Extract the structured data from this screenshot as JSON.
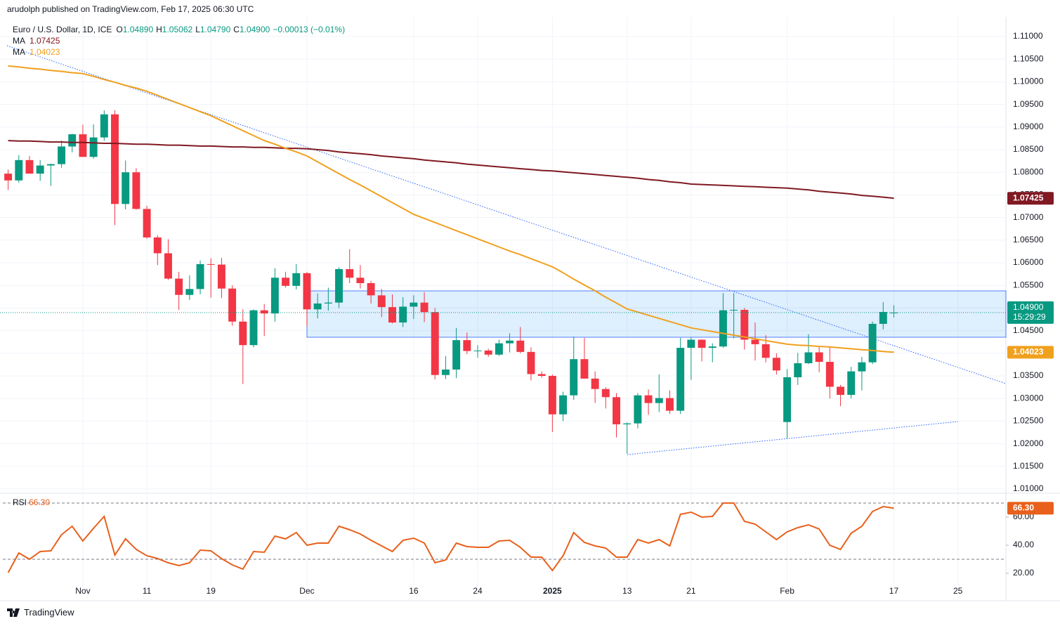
{
  "header": "arudolph published on TradingView.com, Feb 17, 2025 06:30 UTC",
  "footer": "TradingView",
  "chart_data": {
    "type": "candlestick",
    "title": "Euro / U.S. Dollar, 1D, ICE",
    "legend": {
      "fields": [
        {
          "key": "O",
          "value": "1.04890"
        },
        {
          "key": "H",
          "value": "1.05062"
        },
        {
          "key": "L",
          "value": "1.04790"
        },
        {
          "key": "C",
          "value": "1.04900"
        }
      ],
      "change": "−0.00013 (−0.01%)"
    },
    "countdown": "15:29:29",
    "up_color": "#089981",
    "down_color": "#f23645",
    "categories": [
      null,
      null,
      null,
      null,
      null,
      null,
      null,
      "Nov",
      null,
      null,
      null,
      null,
      null,
      "11",
      null,
      null,
      null,
      null,
      null,
      "19",
      null,
      null,
      null,
      null,
      null,
      null,
      null,
      null,
      "Dec",
      null,
      null,
      null,
      null,
      null,
      null,
      null,
      null,
      null,
      "16",
      null,
      null,
      null,
      null,
      null,
      "24",
      null,
      null,
      null,
      null,
      null,
      null,
      "2025",
      null,
      null,
      null,
      null,
      null,
      null,
      "13",
      null,
      null,
      null,
      null,
      null,
      "21",
      null,
      null,
      null,
      null,
      null,
      null,
      null,
      null,
      "Feb",
      null,
      null,
      null,
      null,
      null,
      null,
      null,
      null,
      null,
      "17",
      null,
      null,
      null,
      null,
      null,
      "25",
      null,
      null,
      null,
      null
    ],
    "open": [
      1.0797,
      1.0782,
      1.0827,
      1.0797,
      1.0815,
      1.0818,
      1.0857,
      1.0884,
      1.0834,
      1.0877,
      1.0928,
      1.073,
      1.08,
      1.0719,
      1.0656,
      1.0621,
      1.0565,
      1.0529,
      1.0542,
      1.0597,
      1.0596,
      1.0543,
      1.047,
      1.0418,
      1.0495,
      1.0488,
      1.0567,
      1.0549,
      1.0577,
      1.0497,
      1.051,
      1.0512,
      1.0586,
      1.0567,
      1.0555,
      1.0528,
      1.0502,
      1.0468,
      1.0503,
      1.0512,
      1.0491,
      1.0352,
      1.0364,
      1.0429,
      1.0405,
      1.0406,
      1.0397,
      1.0422,
      1.0428,
      1.0403,
      1.0354,
      1.035,
      1.0265,
      1.0307,
      1.0387,
      1.0344,
      1.0321,
      1.0303,
      1.0243,
      1.0245,
      1.0307,
      1.029,
      1.0301,
      1.0273,
      1.0412,
      1.043,
      1.0412,
      1.0415,
      1.0495,
      1.0496,
      1.043,
      1.042,
      1.039,
      1.0248,
      1.0347,
      1.0378,
      1.0402,
      1.0381,
      1.0326,
      1.0308,
      1.036,
      1.038,
      1.0465,
      1.0489,
      null,
      null,
      null,
      null,
      null,
      null,
      null,
      null,
      null,
      null
    ],
    "high": [
      1.0806,
      1.0838,
      1.0836,
      1.0827,
      1.0819,
      1.087,
      1.0885,
      1.0905,
      1.0906,
      1.0937,
      1.0937,
      1.0826,
      1.0809,
      1.0726,
      1.0661,
      1.0652,
      1.058,
      1.0572,
      1.0605,
      1.061,
      1.0611,
      1.055,
      1.0497,
      1.0497,
      1.0509,
      1.0588,
      1.058,
      1.0597,
      1.058,
      1.0532,
      1.0545,
      1.059,
      1.063,
      1.0595,
      1.056,
      1.0542,
      1.053,
      1.0524,
      1.0528,
      1.0535,
      1.05,
      1.0394,
      1.0456,
      1.0446,
      1.0418,
      1.041,
      1.043,
      1.0444,
      1.0458,
      1.0413,
      1.036,
      1.0353,
      1.0315,
      1.0437,
      1.0434,
      1.036,
      1.0325,
      1.0312,
      1.0247,
      1.0312,
      1.032,
      1.0353,
      1.0318,
      1.0434,
      1.0435,
      1.0431,
      1.0422,
      1.0533,
      1.0533,
      1.05,
      1.0468,
      1.044,
      1.04,
      1.0365,
      1.0401,
      1.0442,
      1.0415,
      1.0413,
      1.033,
      1.037,
      1.0392,
      1.047,
      1.0513,
      1.05062,
      null,
      null,
      null,
      null,
      null,
      null,
      null,
      null,
      null,
      null
    ],
    "low": [
      1.0761,
      1.0777,
      1.0799,
      1.0781,
      1.077,
      1.081,
      1.0844,
      1.0834,
      1.083,
      1.087,
      1.0683,
      1.0718,
      1.0717,
      1.0653,
      1.0595,
      1.0562,
      1.0496,
      1.0518,
      1.053,
      1.0523,
      1.0522,
      1.0461,
      1.0332,
      1.0413,
      1.0438,
      1.047,
      1.0545,
      1.0541,
      1.046,
      1.0477,
      1.0494,
      1.05,
      1.0555,
      1.0543,
      1.051,
      1.048,
      1.0466,
      1.0458,
      1.0476,
      1.0469,
      1.0342,
      1.0343,
      1.0345,
      1.0398,
      1.039,
      1.0392,
      1.0394,
      1.0402,
      1.04,
      1.034,
      1.0346,
      1.0226,
      1.025,
      1.0297,
      1.0344,
      1.029,
      1.0278,
      1.0214,
      1.0178,
      1.0234,
      1.0264,
      1.027,
      1.0266,
      1.0266,
      1.0341,
      1.0382,
      1.038,
      1.0412,
      1.0433,
      1.0408,
      1.0384,
      1.038,
      1.0353,
      1.0211,
      1.033,
      1.0376,
      1.0358,
      1.03,
      1.0283,
      1.03,
      1.0318,
      1.0376,
      1.0453,
      1.0479,
      null,
      null,
      null,
      null,
      null,
      null,
      null,
      null,
      null,
      null
    ],
    "close": [
      1.0782,
      1.0827,
      1.0797,
      1.0815,
      1.0818,
      1.0857,
      1.0884,
      1.0834,
      1.0877,
      1.0928,
      1.073,
      1.08,
      1.0719,
      1.0656,
      1.0621,
      1.0565,
      1.0529,
      1.0542,
      1.0597,
      1.0596,
      1.0543,
      1.047,
      1.0418,
      1.0495,
      1.0488,
      1.0567,
      1.0549,
      1.0577,
      1.0497,
      1.051,
      1.0512,
      1.0586,
      1.0567,
      1.0555,
      1.0528,
      1.0502,
      1.0468,
      1.0503,
      1.0512,
      1.0491,
      1.0352,
      1.0364,
      1.0429,
      1.0405,
      1.0406,
      1.0397,
      1.0422,
      1.0428,
      1.0403,
      1.0354,
      1.035,
      1.0265,
      1.0307,
      1.0387,
      1.0344,
      1.0321,
      1.0303,
      1.0243,
      1.0245,
      1.0307,
      1.029,
      1.0301,
      1.0273,
      1.0412,
      1.043,
      1.0412,
      1.0415,
      1.0495,
      1.0496,
      1.043,
      1.042,
      1.039,
      1.0362,
      1.0347,
      1.0378,
      1.0402,
      1.0381,
      1.0326,
      1.0308,
      1.036,
      1.038,
      1.0465,
      1.04913,
      1.049,
      null,
      null,
      null,
      null,
      null,
      null,
      null,
      null,
      null,
      null
    ],
    "overlays": [
      {
        "name": "MA",
        "color": "#801922",
        "values": [
          1.087,
          1.0869,
          1.0869,
          1.0868,
          1.0867,
          1.0867,
          1.0866,
          1.0866,
          1.0865,
          1.0864,
          1.0864,
          1.0863,
          1.0862,
          1.0862,
          1.0861,
          1.086,
          1.086,
          1.0859,
          1.0858,
          1.0858,
          1.0857,
          1.0856,
          1.0856,
          1.0855,
          1.0855,
          1.0854,
          1.0853,
          1.0853,
          1.0852,
          1.085,
          1.0848,
          1.0845,
          1.0843,
          1.0841,
          1.0839,
          1.0836,
          1.0834,
          1.0832,
          1.083,
          1.0827,
          1.0825,
          1.0823,
          1.0821,
          1.0818,
          1.0816,
          1.0814,
          1.0812,
          1.081,
          1.0808,
          1.0806,
          1.0804,
          1.0803,
          1.0801,
          1.0799,
          1.0797,
          1.0795,
          1.0793,
          1.0791,
          1.0789,
          1.0787,
          1.0784,
          1.0782,
          1.0779,
          1.0777,
          1.0774,
          1.0773,
          1.0772,
          1.0771,
          1.077,
          1.0769,
          1.0768,
          1.0767,
          1.0766,
          1.0765,
          1.0763,
          1.0761,
          1.0758,
          1.0756,
          1.0754,
          1.0752,
          1.0749,
          1.0747,
          1.0745,
          1.07425,
          null,
          null,
          null,
          null,
          null,
          null,
          null,
          null,
          null,
          null
        ]
      },
      {
        "name": "MA",
        "color": "#f0a01e",
        "values": [
          1.1035,
          1.1033,
          1.103,
          1.1028,
          1.1025,
          1.1023,
          1.102,
          1.1018,
          1.1012,
          1.1005,
          1.0999,
          1.0992,
          1.0986,
          1.0979,
          1.097,
          1.0961,
          1.0952,
          1.0943,
          1.0934,
          1.0925,
          1.0914,
          1.0903,
          1.0892,
          1.0881,
          1.087,
          1.0862,
          1.0853,
          1.0845,
          1.0836,
          1.0823,
          1.081,
          1.0797,
          1.0784,
          1.0772,
          1.0759,
          1.0746,
          1.0733,
          1.072,
          1.0707,
          1.0698,
          1.0689,
          1.068,
          1.0671,
          1.0662,
          1.0653,
          1.0644,
          1.0635,
          1.0626,
          1.0618,
          1.0609,
          1.06,
          1.0591,
          1.0578,
          1.0564,
          1.0551,
          1.0538,
          1.0524,
          1.0511,
          1.0498,
          1.0491,
          1.0484,
          1.0477,
          1.047,
          1.0463,
          1.0456,
          1.0452,
          1.0448,
          1.0444,
          1.044,
          1.0436,
          1.0432,
          1.0428,
          1.0424,
          1.042,
          1.0418,
          1.0417,
          1.0415,
          1.0414,
          1.0412,
          1.041,
          1.0408,
          1.0406,
          1.0404,
          1.04023,
          null,
          null,
          null,
          null,
          null,
          null,
          null,
          null,
          null,
          null
        ]
      }
    ],
    "ylim": [
      1.00938,
      1.11435
    ],
    "yticks": [
      {
        "value": 1.01,
        "label": "1.01000"
      },
      {
        "value": 1.015,
        "label": "1.01500"
      },
      {
        "value": 1.02,
        "label": "1.02000"
      },
      {
        "value": 1.025,
        "label": "1.02500"
      },
      {
        "value": 1.03,
        "label": "1.03000"
      },
      {
        "value": 1.035,
        "label": "1.03500"
      },
      {
        "value": 1.04,
        "label": "1.04000"
      },
      {
        "value": 1.045,
        "label": "1.04500"
      },
      {
        "value": 1.05,
        "label": "1.05000"
      },
      {
        "value": 1.055,
        "label": "1.05500"
      },
      {
        "value": 1.06,
        "label": "1.06000"
      },
      {
        "value": 1.065,
        "label": "1.06500"
      },
      {
        "value": 1.07,
        "label": "1.07000"
      },
      {
        "value": 1.075,
        "label": "1.07500"
      },
      {
        "value": 1.08,
        "label": "1.08000"
      },
      {
        "value": 1.085,
        "label": "1.08500"
      },
      {
        "value": 1.09,
        "label": "1.09000"
      },
      {
        "value": 1.095,
        "label": "1.09500"
      },
      {
        "value": 1.1,
        "label": "1.10000"
      },
      {
        "value": 1.105,
        "label": "1.10500"
      },
      {
        "value": 1.11,
        "label": "1.11000"
      }
    ],
    "grid": true,
    "rsi": {
      "name": "RSI",
      "color": "#e8601c",
      "last_label": "66.30",
      "values": [
        20.5,
        34.5,
        30,
        35.5,
        36,
        47.5,
        53.5,
        43,
        52,
        60.5,
        33,
        44.5,
        37,
        32.5,
        30.5,
        27.5,
        25.5,
        27.5,
        36.5,
        36,
        30.5,
        26,
        23,
        35.5,
        35,
        46.5,
        44.5,
        49,
        40,
        41.5,
        41.5,
        53.5,
        51,
        48,
        43.5,
        39.5,
        35.5,
        43.5,
        45,
        41.5,
        27.5,
        29.5,
        41.5,
        39,
        38.5,
        38.5,
        43,
        43.5,
        38.5,
        31.5,
        31.5,
        22,
        32.5,
        49,
        42,
        39.5,
        38,
        31.5,
        31.5,
        44,
        41.5,
        44,
        39.5,
        62,
        63.5,
        60,
        60.5,
        70,
        70,
        57,
        55,
        49.5,
        44,
        49.5,
        52.5,
        54.5,
        51.5,
        40,
        37,
        48.5,
        53.5,
        64,
        67.5,
        66.3,
        null,
        null,
        null,
        null,
        null,
        null,
        null,
        null,
        null,
        null
      ],
      "ylim": [
        10.5,
        76.5
      ],
      "yticks": [
        {
          "value": 20,
          "label": "20.00"
        },
        {
          "value": 40,
          "label": "40.00"
        },
        {
          "value": 60,
          "label": "60.00"
        }
      ],
      "bands": [
        30,
        70
      ]
    }
  }
}
